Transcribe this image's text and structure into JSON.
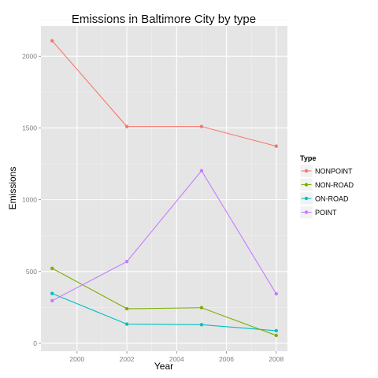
{
  "chart_data": {
    "type": "line",
    "title": "Emissions in Baltimore City by type",
    "xlabel": "Year",
    "ylabel": "Emissions",
    "x": [
      1999,
      2002,
      2005,
      2008
    ],
    "xlim": [
      1998.55,
      2008.45
    ],
    "ylim": [
      -55,
      2210
    ],
    "xticks": [
      2000,
      2002,
      2004,
      2006,
      2008
    ],
    "yticks": [
      0,
      500,
      1000,
      1500,
      2000
    ],
    "grid": true,
    "legend": {
      "title": "Type",
      "placement": "right"
    },
    "series": [
      {
        "name": "NONPOINT",
        "color": "#F8766D",
        "values": [
          2107,
          1510,
          1510,
          1373
        ]
      },
      {
        "name": "NON-ROAD",
        "color": "#7CAE00",
        "values": [
          522,
          241,
          248,
          55
        ]
      },
      {
        "name": "ON-ROAD",
        "color": "#00BFC4",
        "values": [
          347,
          134,
          130,
          88
        ]
      },
      {
        "name": "POINT",
        "color": "#C77CFF",
        "values": [
          297,
          569,
          1202,
          345
        ]
      }
    ]
  }
}
